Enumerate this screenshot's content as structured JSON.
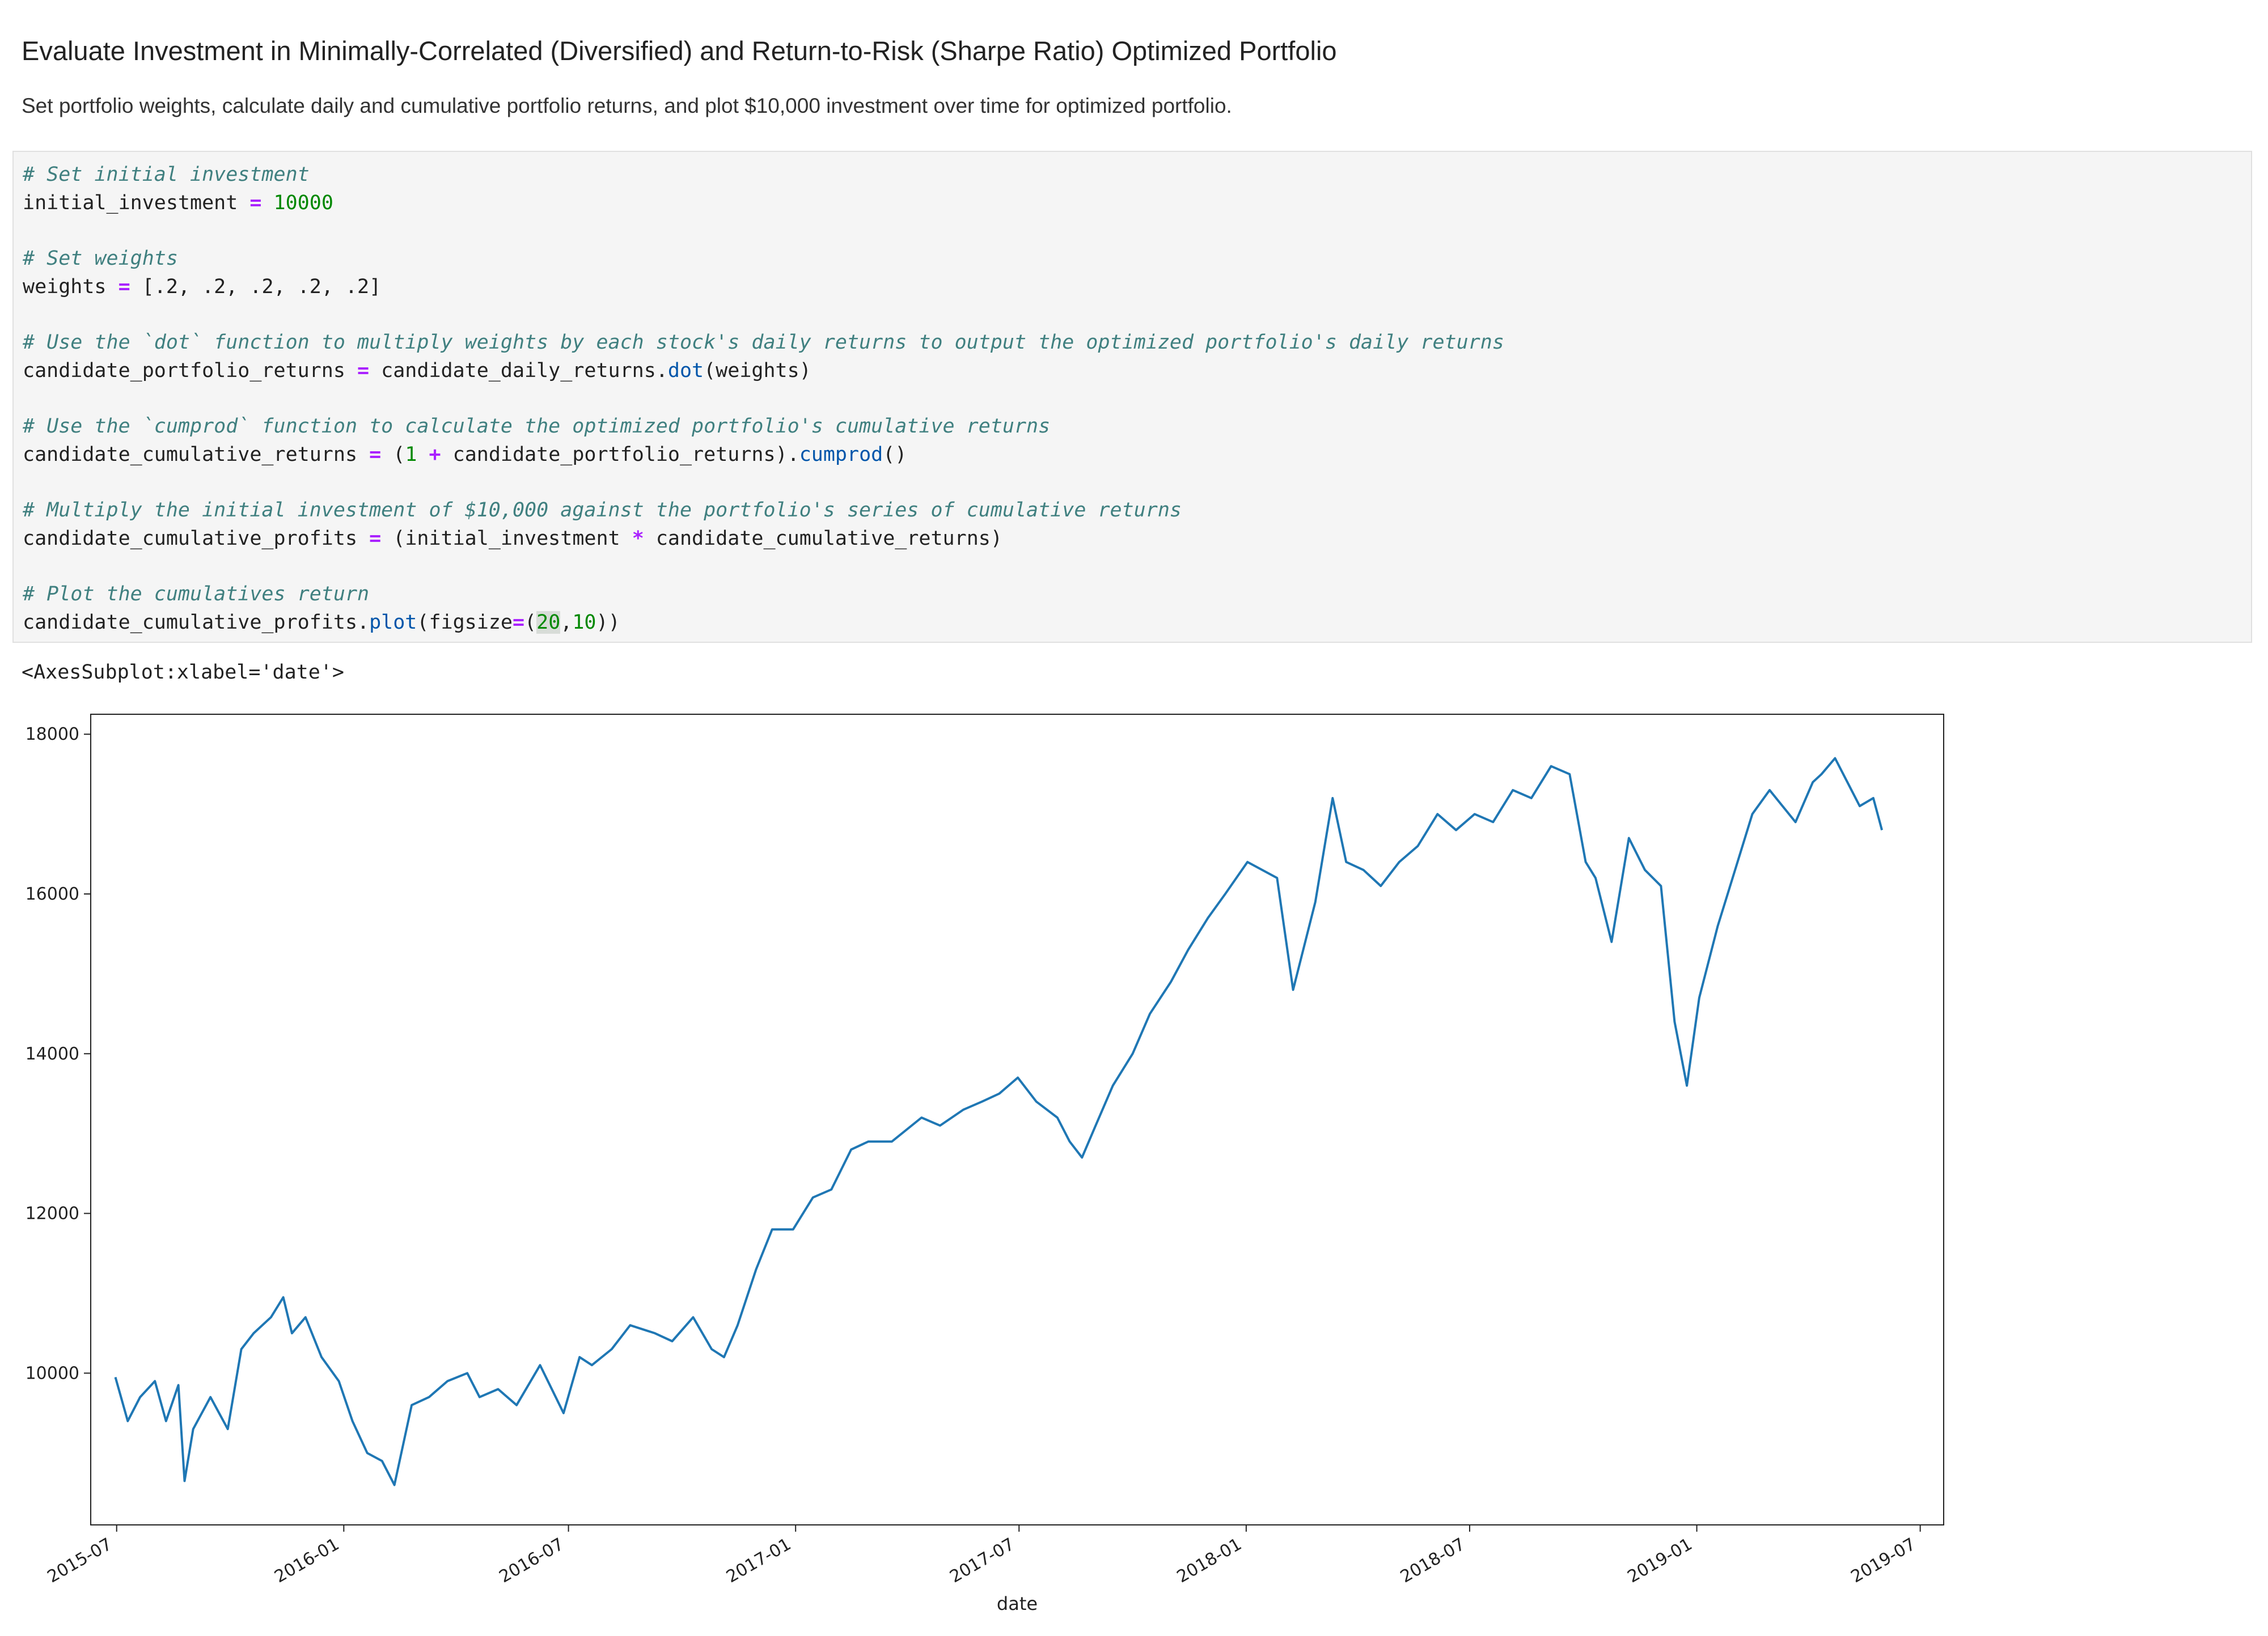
{
  "markdown": {
    "title": "Evaluate Investment in Minimally-Correlated (Diversified) and Return-to-Risk (Sharpe Ratio) Optimized Portfolio",
    "description": "Set portfolio weights, calculate daily and cumulative portfolio returns, and plot $10,000 investment over time for optimized portfolio."
  },
  "code": {
    "c1": "# Set initial investment",
    "l1_var": "initial_investment ",
    "l1_op": "=",
    "l1_num": "10000",
    "c2": "# Set weights",
    "l2_var": "weights ",
    "l2_op": "=",
    "l2_rest": "[.2, .2, .2, .2, .2]",
    "c3": "# Use the `dot` function to multiply weights by each stock's daily returns to output the optimized portfolio's daily returns",
    "l3_var": "candidate_portfolio_returns ",
    "l3_op": "=",
    "l3_mid": " candidate_daily_returns.",
    "l3_fn": "dot",
    "l3_end": "(weights)",
    "c4": "# Use the `cumprod` function to calculate the optimized portfolio's cumulative returns",
    "l4_var": "candidate_cumulative_returns ",
    "l4_op": "=",
    "l4_a": " (",
    "l4_num": "1",
    "l4_plus": "+",
    "l4_b": " candidate_portfolio_returns).",
    "l4_fn": "cumprod",
    "l4_end": "()",
    "c5": "# Multiply the initial investment of $10,000 against the portfolio's series of cumulative returns",
    "l5_var": "candidate_cumulative_profits ",
    "l5_op": "=",
    "l5_a": " (initial_investment ",
    "l5_star": "*",
    "l5_b": " candidate_cumulative_returns)",
    "c6": "# Plot the cumulatives return",
    "l6_var": "candidate_cumulative_profits.",
    "l6_fn": "plot",
    "l6_a": "(figsize",
    "l6_op": "=",
    "l6_p": "(",
    "l6_n1": "20",
    "l6_c": ",",
    "l6_n2": "10",
    "l6_end": "))"
  },
  "output": {
    "repr": "<AxesSubplot:xlabel='date'>"
  },
  "colors": {
    "line": "#1f77b4",
    "comment": "#408080",
    "operator": "#aa22ff",
    "number": "#008800",
    "function": "#0055aa"
  },
  "chart_data": {
    "type": "line",
    "title": "",
    "xlabel": "date",
    "ylabel": "",
    "x_range": [
      "2015-06-10",
      "2019-07-20"
    ],
    "ylim": [
      8100,
      18250
    ],
    "yticks": [
      10000,
      12000,
      14000,
      16000,
      18000
    ],
    "ytick_labels": [
      "10000",
      "12000",
      "14000",
      "16000",
      "18000"
    ],
    "xticks": [
      "2015-07-01",
      "2016-01-01",
      "2016-07-01",
      "2017-01-01",
      "2017-07-01",
      "2018-01-01",
      "2018-07-01",
      "2019-01-01",
      "2019-07-01"
    ],
    "xtick_labels": [
      "2015-07",
      "2016-01",
      "2016-07",
      "2017-01",
      "2017-07",
      "2018-01",
      "2018-07",
      "2019-01",
      "2019-07"
    ],
    "series": [
      {
        "x": [
          "2015-06-30",
          "2015-07-10",
          "2015-07-20",
          "2015-08-01",
          "2015-08-10",
          "2015-08-20",
          "2015-08-25",
          "2015-09-01",
          "2015-09-15",
          "2015-09-29",
          "2015-10-10",
          "2015-10-20",
          "2015-11-03",
          "2015-11-13",
          "2015-11-20",
          "2015-12-01",
          "2015-12-14",
          "2015-12-28",
          "2016-01-08",
          "2016-01-20",
          "2016-02-01",
          "2016-02-11",
          "2016-02-25",
          "2016-03-10",
          "2016-03-25",
          "2016-04-10",
          "2016-04-20",
          "2016-05-05",
          "2016-05-20",
          "2016-06-08",
          "2016-06-27",
          "2016-07-10",
          "2016-07-20",
          "2016-08-05",
          "2016-08-20",
          "2016-09-09",
          "2016-09-23",
          "2016-10-10",
          "2016-10-25",
          "2016-11-04",
          "2016-11-15",
          "2016-11-30",
          "2016-12-13",
          "2016-12-30",
          "2017-01-15",
          "2017-01-30",
          "2017-02-15",
          "2017-03-01",
          "2017-03-20",
          "2017-04-13",
          "2017-04-28",
          "2017-05-17",
          "2017-06-01",
          "2017-06-15",
          "2017-06-30",
          "2017-07-15",
          "2017-08-01",
          "2017-08-11",
          "2017-08-21",
          "2017-09-01",
          "2017-09-15",
          "2017-10-01",
          "2017-10-15",
          "2017-11-01",
          "2017-11-15",
          "2017-12-01",
          "2017-12-15",
          "2018-01-02",
          "2018-01-26",
          "2018-02-08",
          "2018-02-26",
          "2018-03-12",
          "2018-03-23",
          "2018-04-06",
          "2018-04-20",
          "2018-05-05",
          "2018-05-20",
          "2018-06-05",
          "2018-06-20",
          "2018-07-05",
          "2018-07-20",
          "2018-08-05",
          "2018-08-20",
          "2018-09-05",
          "2018-09-20",
          "2018-10-03",
          "2018-10-11",
          "2018-10-24",
          "2018-11-07",
          "2018-11-20",
          "2018-12-03",
          "2018-12-14",
          "2018-12-24",
          "2019-01-03",
          "2019-01-18",
          "2019-02-01",
          "2019-02-15",
          "2019-03-01",
          "2019-03-22",
          "2019-04-05",
          "2019-04-12",
          "2019-04-23",
          "2019-05-03",
          "2019-05-13",
          "2019-05-24",
          "2019-05-31"
        ],
        "y": [
          9950,
          9400,
          9700,
          9900,
          9400,
          9850,
          8650,
          9300,
          9700,
          9300,
          10300,
          10500,
          10700,
          10950,
          10500,
          10700,
          10200,
          9900,
          9400,
          9000,
          8900,
          8600,
          9600,
          9700,
          9900,
          10000,
          9700,
          9800,
          9600,
          10100,
          9500,
          10200,
          10100,
          10300,
          10600,
          10500,
          10400,
          10700,
          10300,
          10200,
          10600,
          11300,
          11800,
          11800,
          12200,
          12300,
          12800,
          12900,
          12900,
          13200,
          13100,
          13300,
          13400,
          13500,
          13700,
          13400,
          13200,
          12900,
          12700,
          13100,
          13600,
          14000,
          14500,
          14900,
          15300,
          15700,
          16000,
          16400,
          16200,
          14800,
          15900,
          17200,
          16400,
          16300,
          16100,
          16400,
          16600,
          17000,
          16800,
          17000,
          16900,
          17300,
          17200,
          17600,
          17500,
          16400,
          16200,
          15400,
          16700,
          16300,
          16100,
          14400,
          13600,
          14700,
          15600,
          16300,
          17000,
          17300,
          16900,
          17400,
          17500,
          17700,
          17400,
          17100,
          17200,
          16800
        ]
      }
    ]
  }
}
